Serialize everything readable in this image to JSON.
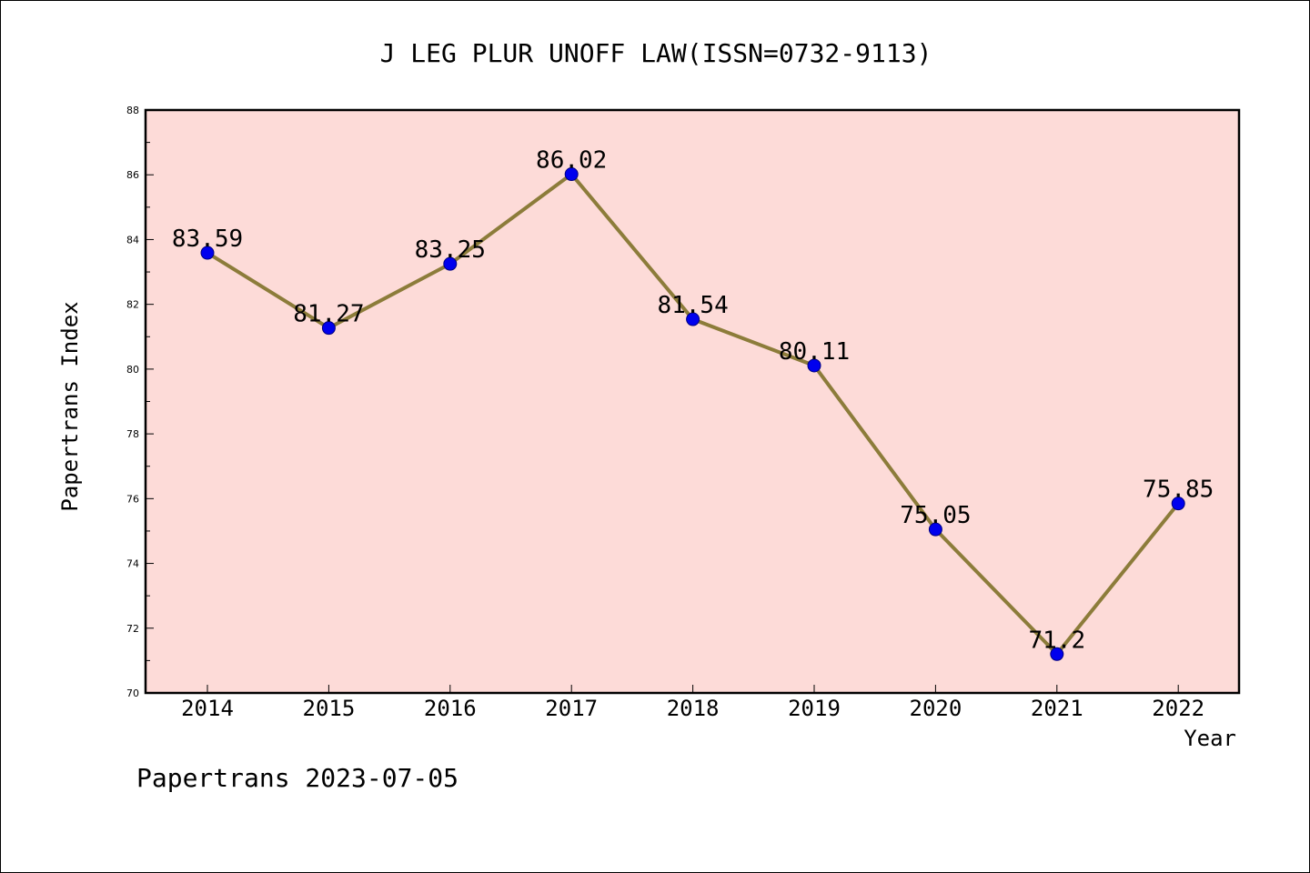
{
  "chart_data": {
    "type": "line",
    "title": "J LEG PLUR UNOFF LAW(ISSN=0732-9113)",
    "xlabel": "Year",
    "ylabel": "Papertrans Index",
    "categories": [
      "2014",
      "2015",
      "2016",
      "2017",
      "2018",
      "2019",
      "2020",
      "2021",
      "2022"
    ],
    "series": [
      {
        "values": [
          83.59,
          81.27,
          83.25,
          86.02,
          81.54,
          80.11,
          75.05,
          71.2,
          75.85
        ],
        "labels": [
          "83.59",
          "81.27",
          "83.25",
          "86.02",
          "81.54",
          "80.11",
          "75.05",
          "71.2",
          "75.85"
        ]
      }
    ],
    "ylim": [
      70,
      88
    ],
    "yticks": [
      "70",
      "72",
      "74",
      "76",
      "78",
      "80",
      "82",
      "84",
      "86",
      "88"
    ],
    "grid": false,
    "legend": "none",
    "colors": {
      "plot_background": "#fddbd8",
      "line": "#8c7c3a",
      "marker": "#0000ee",
      "marker_edge": "#000080"
    }
  },
  "footer": "Papertrans 2023-07-05"
}
